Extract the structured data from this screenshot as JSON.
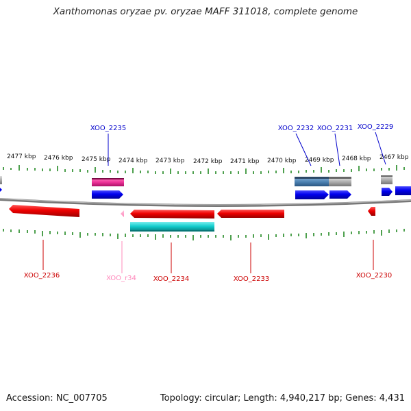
{
  "title": "Xanthomonas oryzae pv. oryzae MAFF 311018, complete genome",
  "footer": {
    "accession": "Accession: NC_007705",
    "summary": "Topology: circular; Length: 4,940,217 bp; Genes: 4,431"
  },
  "ruler": {
    "labels": [
      "2477 kbp",
      "2476 kbp",
      "2475 kbp",
      "2474 kbp",
      "2473 kbp",
      "2472 kbp",
      "2471 kbp",
      "2470 kbp",
      "2469 kbp",
      "2468 kbp",
      "2467 kbp"
    ]
  },
  "genes_top": {
    "g2235": "XOO_2235",
    "g2232": "XOO_2232",
    "g2231": "XOO_2231",
    "g2229": "XOO_2229"
  },
  "genes_bottom": {
    "g2236": "XOO_2236",
    "gr34": "XOO_r34",
    "g2234": "XOO_2234",
    "g2233": "XOO_2233",
    "g2230": "XOO_2230"
  },
  "colors": {
    "forward_gene": "#0000ee",
    "reverse_gene": "#ee0000",
    "rna": "#ff88bb",
    "magenta_feature": "#ee3399",
    "cyan_feature": "#11cccc",
    "steelblue_feature": "#4a7fb0",
    "gray_feature": "#aaaaaa",
    "tick": "#228822",
    "backbone": "#888888"
  }
}
